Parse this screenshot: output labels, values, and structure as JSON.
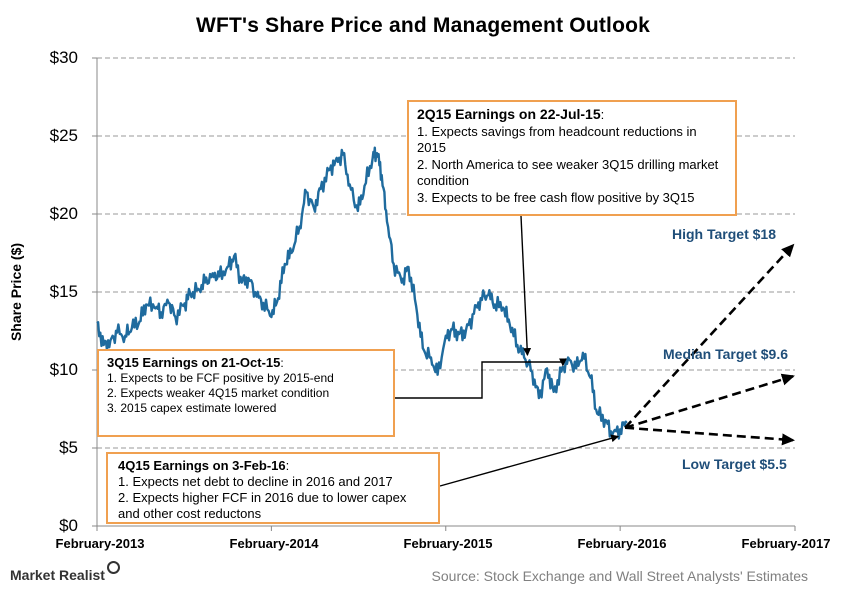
{
  "chart_data": {
    "type": "line",
    "title": "WFT's Share  Price and Management  Outlook",
    "xlabel": "",
    "ylabel": "Share Price ($)",
    "ylim": [
      0,
      30
    ],
    "yticks": [
      "$0",
      "$5",
      "$10",
      "$15",
      "$20",
      "$25",
      "$30"
    ],
    "xticks": [
      "February-2013",
      "February-2014",
      "February-2015",
      "February-2016",
      "February-2017"
    ],
    "xlim": [
      "2013-02",
      "2017-02"
    ],
    "grid": "horizontal dashed",
    "series": [
      {
        "color": "#1f6b9e",
        "points": [
          [
            "2013-02-01",
            13.0
          ],
          [
            "2013-02-15",
            11.6
          ],
          [
            "2013-03-01",
            11.9
          ],
          [
            "2013-03-15",
            12.4
          ],
          [
            "2013-04-01",
            12.2
          ],
          [
            "2013-04-15",
            12.7
          ],
          [
            "2013-05-01",
            13.1
          ],
          [
            "2013-05-15",
            14.2
          ],
          [
            "2013-06-01",
            14.0
          ],
          [
            "2013-06-15",
            13.7
          ],
          [
            "2013-07-01",
            14.3
          ],
          [
            "2013-07-15",
            13.4
          ],
          [
            "2013-08-01",
            14.1
          ],
          [
            "2013-08-15",
            14.9
          ],
          [
            "2013-09-01",
            15.2
          ],
          [
            "2013-09-15",
            15.6
          ],
          [
            "2013-10-01",
            16.2
          ],
          [
            "2013-10-15",
            16.0
          ],
          [
            "2013-11-01",
            16.6
          ],
          [
            "2013-11-15",
            17.3
          ],
          [
            "2013-12-01",
            15.6
          ],
          [
            "2013-12-15",
            15.9
          ],
          [
            "2014-01-01",
            14.7
          ],
          [
            "2014-01-15",
            14.3
          ],
          [
            "2014-02-01",
            13.4
          ],
          [
            "2014-02-15",
            14.6
          ],
          [
            "2014-03-01",
            16.8
          ],
          [
            "2014-03-15",
            17.5
          ],
          [
            "2014-04-01",
            19.2
          ],
          [
            "2014-04-15",
            21.4
          ],
          [
            "2014-05-01",
            20.4
          ],
          [
            "2014-05-15",
            21.6
          ],
          [
            "2014-06-01",
            22.8
          ],
          [
            "2014-06-15",
            23.4
          ],
          [
            "2014-07-01",
            23.8
          ],
          [
            "2014-07-15",
            21.9
          ],
          [
            "2014-08-01",
            20.2
          ],
          [
            "2014-08-15",
            21.8
          ],
          [
            "2014-09-01",
            23.6
          ],
          [
            "2014-09-10",
            23.9
          ],
          [
            "2014-09-20",
            22.5
          ],
          [
            "2014-10-01",
            19.5
          ],
          [
            "2014-10-15",
            16.8
          ],
          [
            "2014-11-01",
            15.6
          ],
          [
            "2014-11-15",
            16.6
          ],
          [
            "2014-12-01",
            14.1
          ],
          [
            "2014-12-15",
            11.4
          ],
          [
            "2015-01-01",
            10.8
          ],
          [
            "2015-01-15",
            9.7
          ],
          [
            "2015-02-01",
            12.2
          ],
          [
            "2015-02-15",
            12.6
          ],
          [
            "2015-03-01",
            12.3
          ],
          [
            "2015-03-15",
            12.5
          ],
          [
            "2015-04-01",
            13.6
          ],
          [
            "2015-04-15",
            14.6
          ],
          [
            "2015-05-01",
            14.8
          ],
          [
            "2015-05-15",
            14.2
          ],
          [
            "2015-06-01",
            14.0
          ],
          [
            "2015-06-15",
            12.9
          ],
          [
            "2015-07-01",
            11.6
          ],
          [
            "2015-07-15",
            10.8
          ],
          [
            "2015-08-01",
            9.9
          ],
          [
            "2015-08-15",
            8.2
          ],
          [
            "2015-09-01",
            10.1
          ],
          [
            "2015-09-15",
            8.6
          ],
          [
            "2015-10-01",
            9.9
          ],
          [
            "2015-10-15",
            10.8
          ],
          [
            "2015-11-01",
            10.1
          ],
          [
            "2015-11-15",
            11.1
          ],
          [
            "2015-12-01",
            9.5
          ],
          [
            "2015-12-15",
            7.2
          ],
          [
            "2016-01-01",
            6.8
          ],
          [
            "2016-01-15",
            5.8
          ],
          [
            "2016-02-01",
            6.2
          ],
          [
            "2016-02-15",
            6.6
          ]
        ]
      }
    ],
    "annotations": [
      {
        "heading": "2Q15 Earnings on 22-Jul-15",
        "suffix": ":",
        "lines": [
          "1. Expects savings from headcount reductions in 2015",
          "2. North America to see weaker 3Q15 drilling market condition",
          "3. Expects to be free cash flow positive by 3Q15"
        ]
      },
      {
        "heading": "3Q15 Earnings on 21-Oct-15",
        "suffix": ":",
        "lines": [
          "1. Expects to be FCF positive  by 2015-end",
          "2. Expects weaker 4Q15 market condition",
          "3. 2015 capex estimate lowered"
        ]
      },
      {
        "heading": "4Q15 Earnings on 3-Feb-16",
        "suffix": ":",
        "lines": [
          "1. Expects net debt to decline in 2016 and 2017",
          "2. Expects higher FCF in 2016 due to lower capex and other cost reductons"
        ]
      }
    ],
    "targets": [
      {
        "label": "High Target $18",
        "value": 18
      },
      {
        "label": "Median Target $9.6",
        "value": 9.6
      },
      {
        "label": "Low Target $5.5",
        "value": 5.5
      }
    ],
    "target_start": {
      "x": "2016-02-03",
      "y": 6.3
    }
  },
  "footer": {
    "brand": "Market Realist",
    "source": "Source: Stock Exchange and Wall Street Analysts' Estimates"
  },
  "colors": {
    "line": "#1f6b9e",
    "box_border": "#f0a050",
    "target_text": "#1f4e79",
    "grid": "#9a9a9a"
  }
}
